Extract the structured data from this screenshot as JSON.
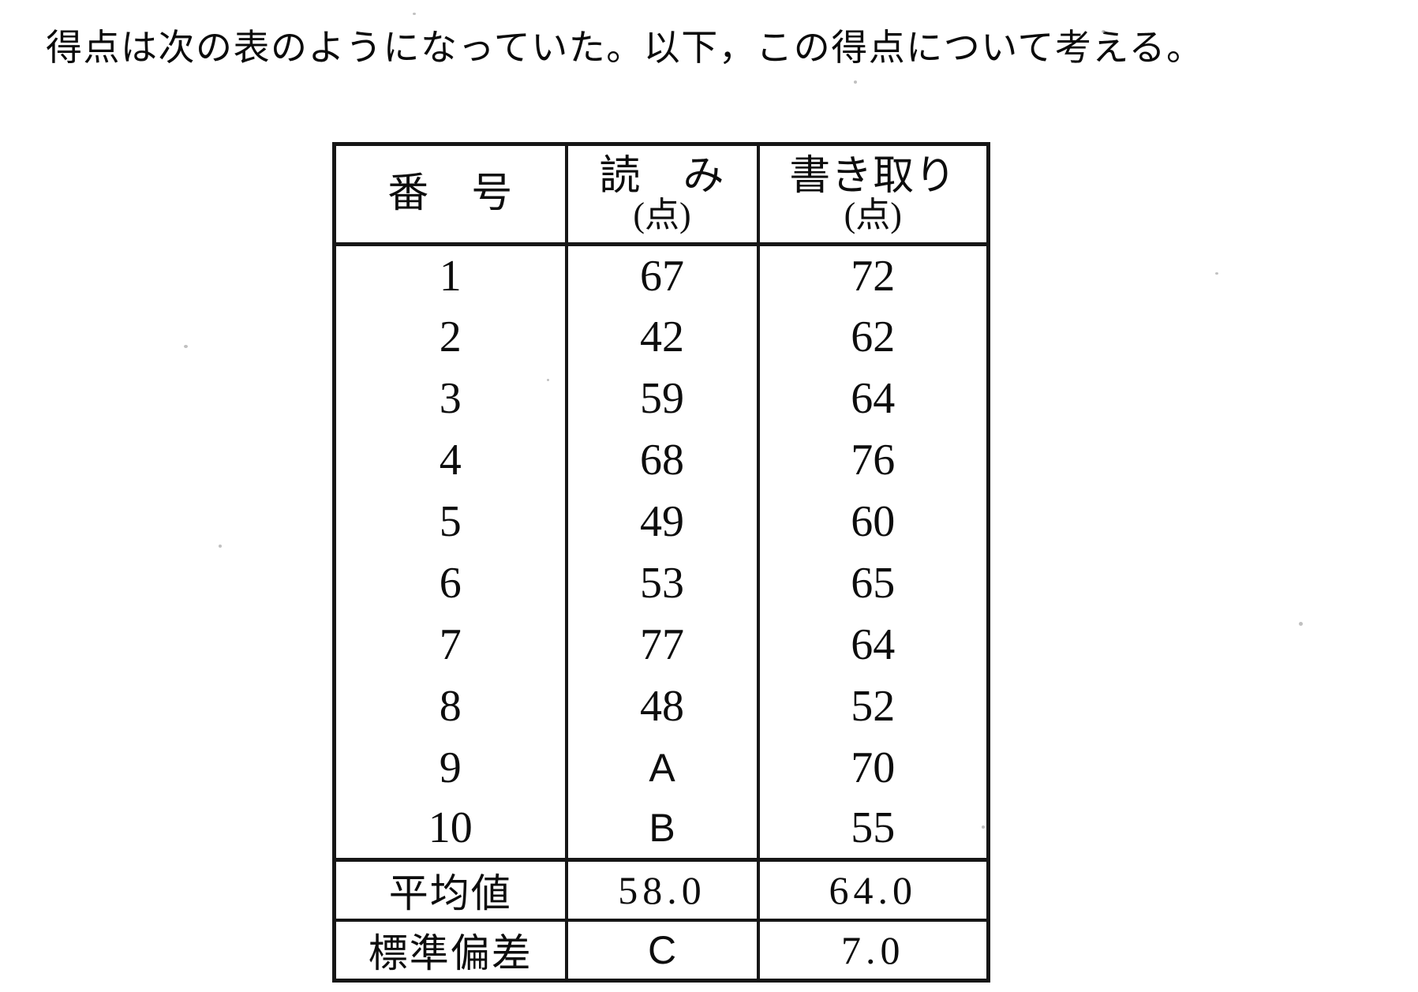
{
  "intro": {
    "text": "得点は次の表のようになっていた。以下，この得点について考える。"
  },
  "table": {
    "header": {
      "number": "番　号",
      "reading_line1": "読　み",
      "reading_line2": "(点)",
      "writing_line1": "書き取り",
      "writing_line2": "(点)"
    },
    "rows": [
      {
        "no": "1",
        "reading": "67",
        "writing": "72"
      },
      {
        "no": "2",
        "reading": "42",
        "writing": "62"
      },
      {
        "no": "3",
        "reading": "59",
        "writing": "64"
      },
      {
        "no": "4",
        "reading": "68",
        "writing": "76"
      },
      {
        "no": "5",
        "reading": "49",
        "writing": "60"
      },
      {
        "no": "6",
        "reading": "53",
        "writing": "65"
      },
      {
        "no": "7",
        "reading": "77",
        "writing": "64"
      },
      {
        "no": "8",
        "reading": "48",
        "writing": "52"
      },
      {
        "no": "9",
        "reading": "A",
        "writing": "70"
      },
      {
        "no": "10",
        "reading": "B",
        "writing": "55"
      }
    ],
    "summary_rows": [
      {
        "label": "平均値",
        "reading": "58.0",
        "writing": "64.0"
      },
      {
        "label": "標準偏差",
        "reading": "C",
        "writing": "7.0"
      }
    ]
  },
  "colors": {
    "ink": "#0d0d0d",
    "paper": "#ffffff",
    "table_border": "#161616"
  }
}
